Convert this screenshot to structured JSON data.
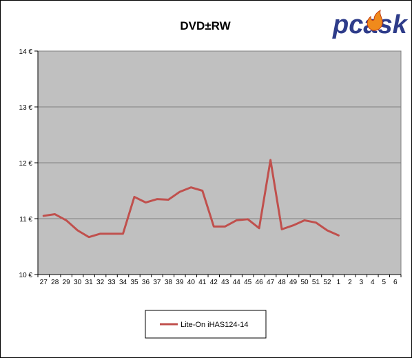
{
  "chart_data": {
    "type": "line",
    "title": "DVD±RW",
    "categories": [
      "27",
      "28",
      "29",
      "30",
      "31",
      "32",
      "33",
      "34",
      "35",
      "36",
      "37",
      "38",
      "39",
      "40",
      "41",
      "42",
      "43",
      "44",
      "45",
      "46",
      "47",
      "48",
      "49",
      "50",
      "51",
      "52",
      "1",
      "2",
      "3",
      "4",
      "5",
      "6"
    ],
    "series": [
      {
        "name": "Lite-On  iHAS124-14",
        "color": "#c0504d",
        "values": [
          11.05,
          11.08,
          10.97,
          10.79,
          10.67,
          10.73,
          10.73,
          10.73,
          11.39,
          11.29,
          11.35,
          11.34,
          11.48,
          11.56,
          11.5,
          10.86,
          10.86,
          10.97,
          10.99,
          10.83,
          12.05,
          10.81,
          10.88,
          10.97,
          10.93,
          10.79,
          10.7,
          null,
          null,
          null,
          null,
          null
        ]
      }
    ],
    "yticks": [
      "10 €",
      "11 €",
      "12 €",
      "13 €",
      "14 €"
    ],
    "ylim": [
      10,
      14
    ],
    "xlabel": "",
    "ylabel": "",
    "grid": true,
    "legend_position": "bottom",
    "plot_background": "#c0c0c0"
  },
  "logo": {
    "text": "pcask",
    "color": "#2e3c8a",
    "flame_color": "#f08a1c"
  }
}
